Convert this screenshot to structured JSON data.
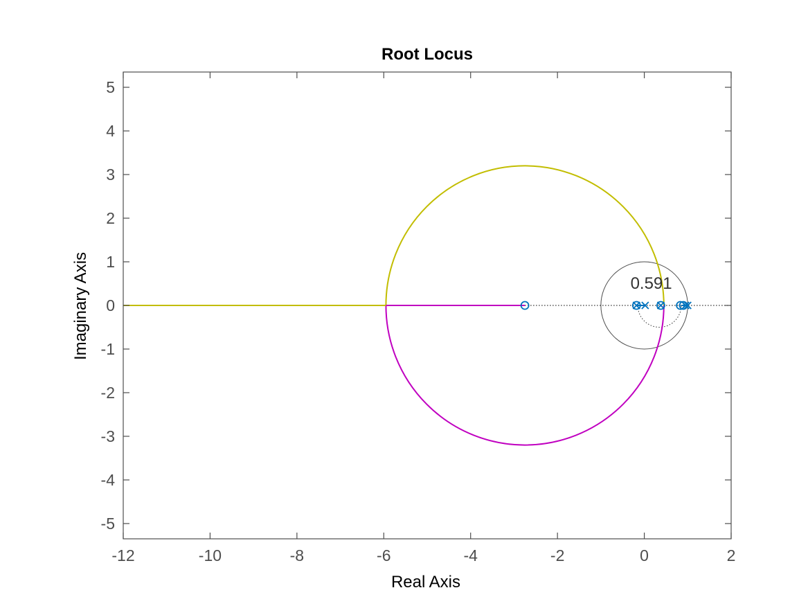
{
  "chart_data": {
    "type": "line",
    "title": "Root Locus",
    "xlabel": "Real Axis",
    "ylabel": "Imaginary Axis",
    "xlim": [
      -12,
      2
    ],
    "ylim": [
      -5.35,
      5.35
    ],
    "xticks": [
      -12,
      -10,
      -8,
      -6,
      -4,
      -2,
      0,
      2
    ],
    "yticks": [
      -5,
      -4,
      -3,
      -2,
      -1,
      0,
      1,
      2,
      3,
      4,
      5
    ],
    "grid": false,
    "legend": "none",
    "colors": {
      "axis": "#4d4d4d",
      "upper_branch": "#c2bd00",
      "lower_branch": "#c000c0",
      "marker": "#0072bd",
      "unit_circle": "#4d4d4d",
      "dotted": "#333333"
    },
    "branch_circle": {
      "center": [
        -2.75,
        0
      ],
      "radius": 3.2
    },
    "series": [
      {
        "type": "line",
        "color": "#c2bd00",
        "x": [
          0.45,
          0.3,
          0.0,
          -0.5,
          -1.0,
          -1.5,
          -2.0,
          -2.5,
          -2.75,
          -3.0,
          -3.5,
          -4.0,
          -4.5,
          -5.0,
          -5.5,
          -5.8,
          -5.95
        ],
        "y": [
          0.0,
          1.54,
          2.36,
          2.85,
          3.07,
          3.17,
          3.2,
          3.2,
          3.2,
          3.19,
          3.11,
          2.94,
          2.61,
          2.17,
          1.58,
          1.0,
          0.0
        ]
      },
      {
        "type": "line",
        "color": "#c2bd00",
        "x": [
          -5.95,
          -12.0
        ],
        "y": [
          0.0,
          0.0
        ]
      },
      {
        "type": "line",
        "color": "#c000c0",
        "x": [
          0.45,
          0.3,
          0.0,
          -0.5,
          -1.0,
          -1.5,
          -2.0,
          -2.5,
          -2.75,
          -3.0,
          -3.5,
          -4.0,
          -4.5,
          -5.0,
          -5.5,
          -5.8,
          -5.95
        ],
        "y": [
          0.0,
          -1.54,
          -2.36,
          -2.85,
          -3.07,
          -3.17,
          -3.2,
          -3.2,
          -3.2,
          -3.19,
          -3.11,
          -2.94,
          -2.61,
          -2.17,
          -1.58,
          -1.0,
          0.0
        ]
      },
      {
        "type": "line",
        "color": "#c000c0",
        "x": [
          -5.95,
          -2.75
        ],
        "y": [
          0.0,
          0.0
        ]
      },
      {
        "type": "line",
        "color": "#0072bd",
        "x": [
          -0.2,
          0.0
        ],
        "y": [
          0.0,
          0.0
        ]
      },
      {
        "type": "line",
        "color": "#0072bd",
        "x": [
          0.85,
          1.0
        ],
        "y": [
          0.0,
          0.0
        ]
      }
    ],
    "zeros": [
      [
        -2.75,
        0
      ],
      [
        -0.18,
        0
      ],
      [
        0.38,
        0
      ],
      [
        0.83,
        0
      ],
      [
        0.9,
        0
      ]
    ],
    "poles": [
      [
        -0.18,
        0
      ],
      [
        0.02,
        0
      ],
      [
        0.38,
        0
      ],
      [
        0.95,
        0
      ],
      [
        1.0,
        0
      ]
    ],
    "unit_circle": {
      "center": [
        0,
        0
      ],
      "radius": 1
    },
    "dotted_real_axis": [
      -2.75,
      2
    ],
    "dotted_arc": {
      "center": [
        0.35,
        0
      ],
      "radius": 0.5,
      "direction": "lower"
    },
    "annotations": [
      {
        "text": "0.591",
        "x": 0.16,
        "y": 0.38
      }
    ]
  }
}
